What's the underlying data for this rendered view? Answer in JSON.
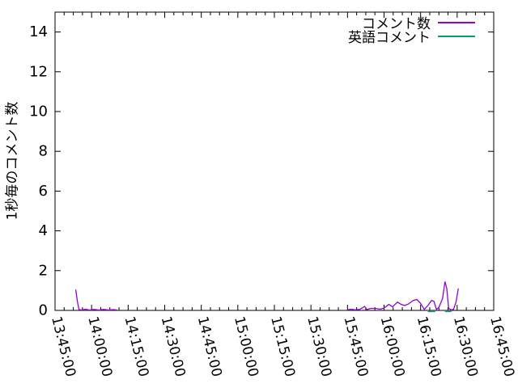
{
  "chart_data": {
    "type": "line",
    "title": "",
    "xlabel": "",
    "ylabel": "1秒毎のコメント数",
    "ylim": [
      0,
      15
    ],
    "y_ticks": [
      0,
      2,
      4,
      6,
      8,
      10,
      12,
      14
    ],
    "x_range": [
      "13:45:00",
      "16:45:00"
    ],
    "x_ticks": [
      "13:45:00",
      "14:00:00",
      "14:15:00",
      "14:30:00",
      "14:45:00",
      "15:00:00",
      "15:15:00",
      "15:30:00",
      "15:45:00",
      "16:00:00",
      "16:15:00",
      "16:30:00",
      "16:45:00"
    ],
    "x_minor_divisions": 4,
    "grid": false,
    "legend_position": "top-right-inside",
    "axis_color": "#000000",
    "text_color": "#000000",
    "series": [
      {
        "name": "コメント数",
        "color": "#9400d3",
        "segments": [
          [
            [
              "13:53:30",
              1.05
            ],
            [
              "13:54:10",
              0.45
            ],
            [
              "13:54:50",
              0.04
            ],
            [
              "13:56:00",
              0.02
            ],
            [
              "13:57:30",
              0.06
            ],
            [
              "13:59:00",
              0.02
            ],
            [
              "14:01:00",
              0.05
            ],
            [
              "14:03:00",
              0.02
            ],
            [
              "14:05:00",
              0.05
            ],
            [
              "14:07:00",
              0.02
            ],
            [
              "14:09:00",
              0.04
            ],
            [
              "14:10:30",
              0.02
            ]
          ],
          [
            [
              "15:45:00",
              0.03
            ],
            [
              "15:46:30",
              0.06
            ],
            [
              "15:48:00",
              0.03
            ],
            [
              "15:50:00",
              0.05
            ],
            [
              "15:52:00",
              0.2
            ],
            [
              "15:53:00",
              0.04
            ],
            [
              "15:54:30",
              0.1
            ],
            [
              "15:56:30",
              0.1
            ],
            [
              "15:58:30",
              0.06
            ],
            [
              "16:00:00",
              0.12
            ],
            [
              "16:02:00",
              0.3
            ],
            [
              "16:03:30",
              0.18
            ],
            [
              "16:05:30",
              0.42
            ],
            [
              "16:07:00",
              0.3
            ],
            [
              "16:08:30",
              0.25
            ],
            [
              "16:10:00",
              0.32
            ],
            [
              "16:12:00",
              0.5
            ],
            [
              "16:13:30",
              0.55
            ],
            [
              "16:15:00",
              0.35
            ],
            [
              "16:16:30",
              0.05
            ],
            [
              "16:18:00",
              0.25
            ],
            [
              "16:19:30",
              0.5
            ],
            [
              "16:20:30",
              0.45
            ],
            [
              "16:21:30",
              0.05
            ],
            [
              "16:22:30",
              0.15
            ],
            [
              "16:24:00",
              0.6
            ],
            [
              "16:25:00",
              1.45
            ],
            [
              "16:25:45",
              1.1
            ],
            [
              "16:26:30",
              0.1
            ],
            [
              "16:27:30",
              0.03
            ],
            [
              "16:28:30",
              0.05
            ],
            [
              "16:29:30",
              0.4
            ],
            [
              "16:30:30",
              1.1
            ]
          ]
        ]
      },
      {
        "name": "英語コメント",
        "color": "#009e73",
        "segments": [
          [
            [
              "16:18:00",
              0
            ],
            [
              "16:21:00",
              0
            ]
          ],
          [
            [
              "16:25:00",
              0
            ],
            [
              "16:27:40",
              0
            ]
          ]
        ]
      }
    ]
  }
}
